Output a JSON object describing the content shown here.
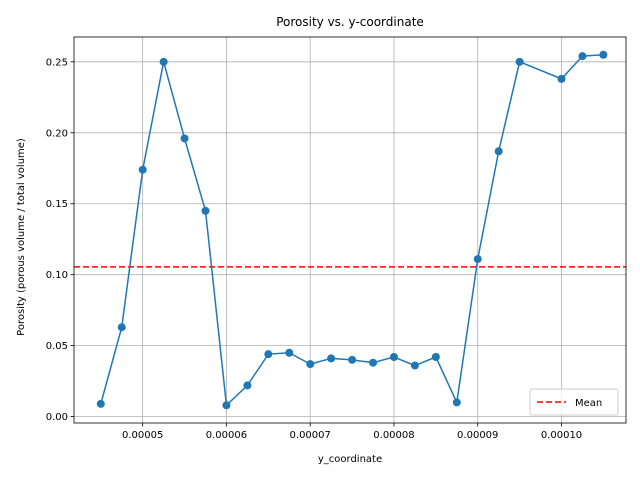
{
  "chart_data": {
    "type": "line",
    "title": "Porosity vs. y-coordinate",
    "xlabel": "y_coordinate",
    "ylabel": "Porosity (porous volume / total volume)",
    "xlim": [
      4.18e-05,
      0.0001077
    ],
    "ylim": [
      -0.0045,
      0.2675
    ],
    "x_ticks": [
      5e-05,
      6e-05,
      7e-05,
      8e-05,
      9e-05,
      0.0001
    ],
    "x_tick_labels": [
      "0.00005",
      "0.00006",
      "0.00007",
      "0.00008",
      "0.00009",
      "0.00010"
    ],
    "y_ticks": [
      0.0,
      0.05,
      0.1,
      0.15,
      0.2,
      0.25
    ],
    "y_tick_labels": [
      "0.00",
      "0.05",
      "0.10",
      "0.15",
      "0.20",
      "0.25"
    ],
    "grid": true,
    "legend_position": "lower-right",
    "series": [
      {
        "color": "#1f77b4",
        "marker": "circle",
        "x": [
          4.5e-05,
          4.75e-05,
          5e-05,
          5.25e-05,
          5.5e-05,
          5.75e-05,
          6e-05,
          6.25e-05,
          6.5e-05,
          6.75e-05,
          7e-05,
          7.25e-05,
          7.5e-05,
          7.75e-05,
          8e-05,
          8.25e-05,
          8.5e-05,
          8.75e-05,
          9e-05,
          9.25e-05,
          9.5e-05,
          0.0001,
          0.0001025,
          0.000105
        ],
        "y": [
          0.009,
          0.063,
          0.174,
          0.25,
          0.196,
          0.145,
          0.008,
          0.022,
          0.044,
          0.045,
          0.037,
          0.041,
          0.04,
          0.038,
          0.042,
          0.036,
          0.042,
          0.01,
          0.111,
          0.187,
          0.25,
          0.238,
          0.254,
          0.255
        ]
      }
    ],
    "reference_lines": [
      {
        "name": "Mean",
        "y": 0.1055,
        "color": "#ff0000",
        "style": "dashed"
      }
    ]
  }
}
